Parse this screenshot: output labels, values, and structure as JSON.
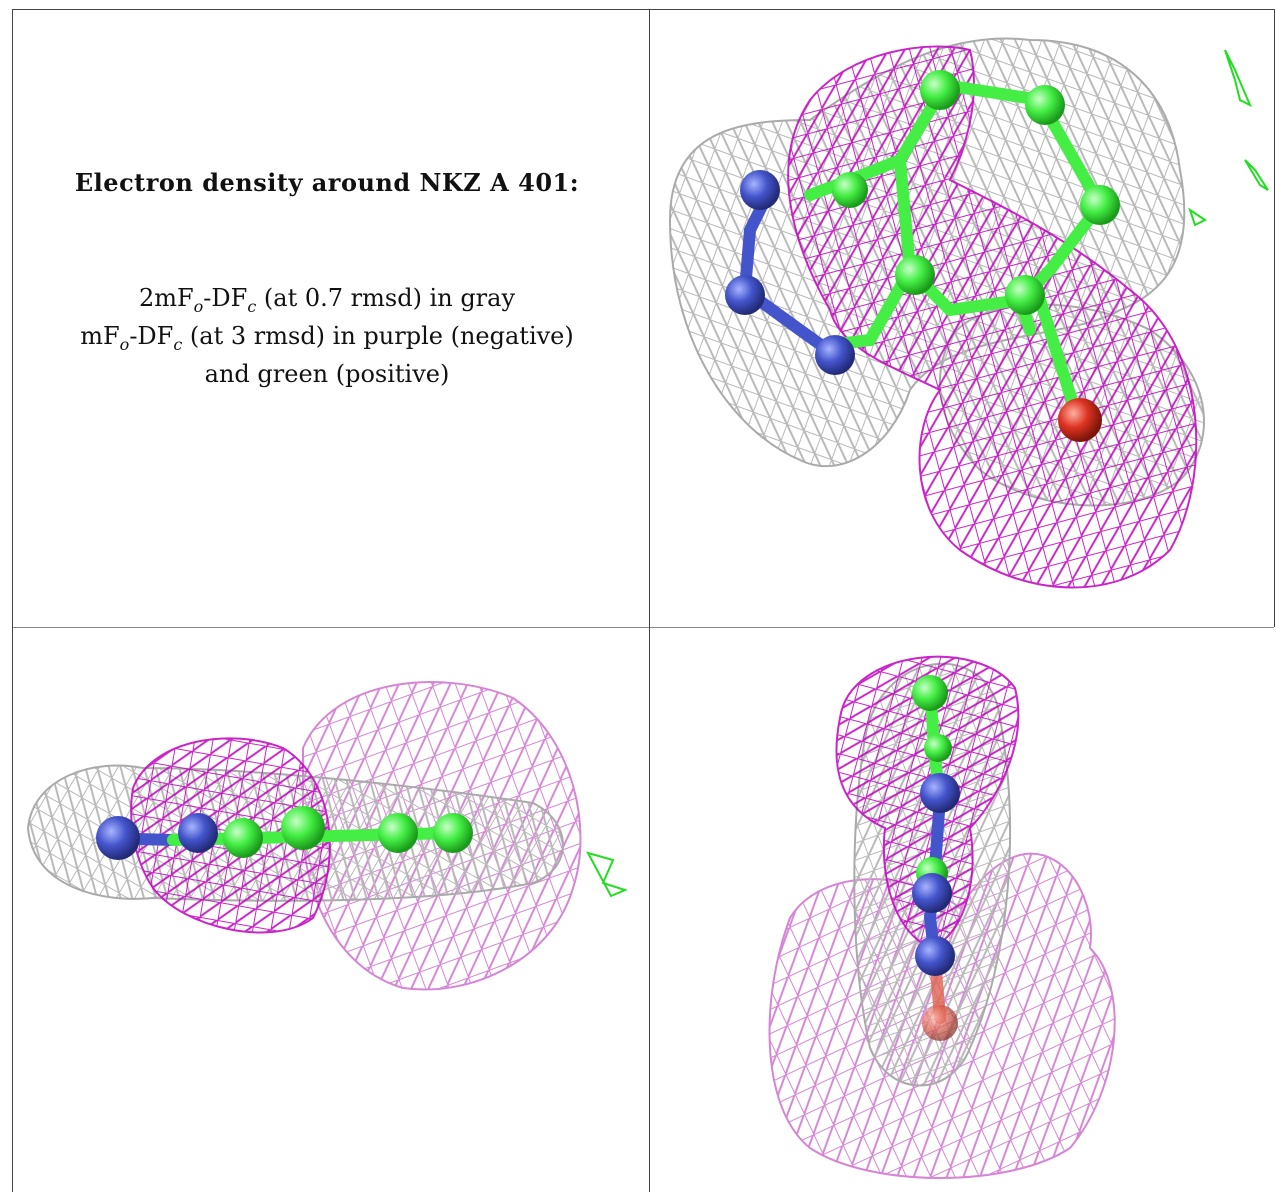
{
  "caption": {
    "title": "Electron density around NKZ A 401:",
    "line1_pre": "2mF",
    "line1_sub1": "o",
    "line1_mid": "-DF",
    "line1_sub2": "c",
    "line1_post": " (at 0.7 rmsd) in gray",
    "line2_pre": "mF",
    "line2_sub1": "o",
    "line2_mid": "-DF",
    "line2_sub2": "c",
    "line2_post": " (at 3 rmsd) in purple (negative)",
    "line3": "and green (positive)"
  },
  "colors": {
    "gray_mesh": "#b8b8b8",
    "purple_mesh": "#c000c0",
    "purple_light": "#d070d0",
    "green_mesh": "#22dd22",
    "carbon": "#44ee44",
    "nitrogen": "#4455cc",
    "oxygen": "#dd3322",
    "grid_line": "#444444"
  },
  "panels": [
    {
      "name": "view-top-right"
    },
    {
      "name": "view-bottom-left"
    },
    {
      "name": "view-bottom-right"
    }
  ]
}
